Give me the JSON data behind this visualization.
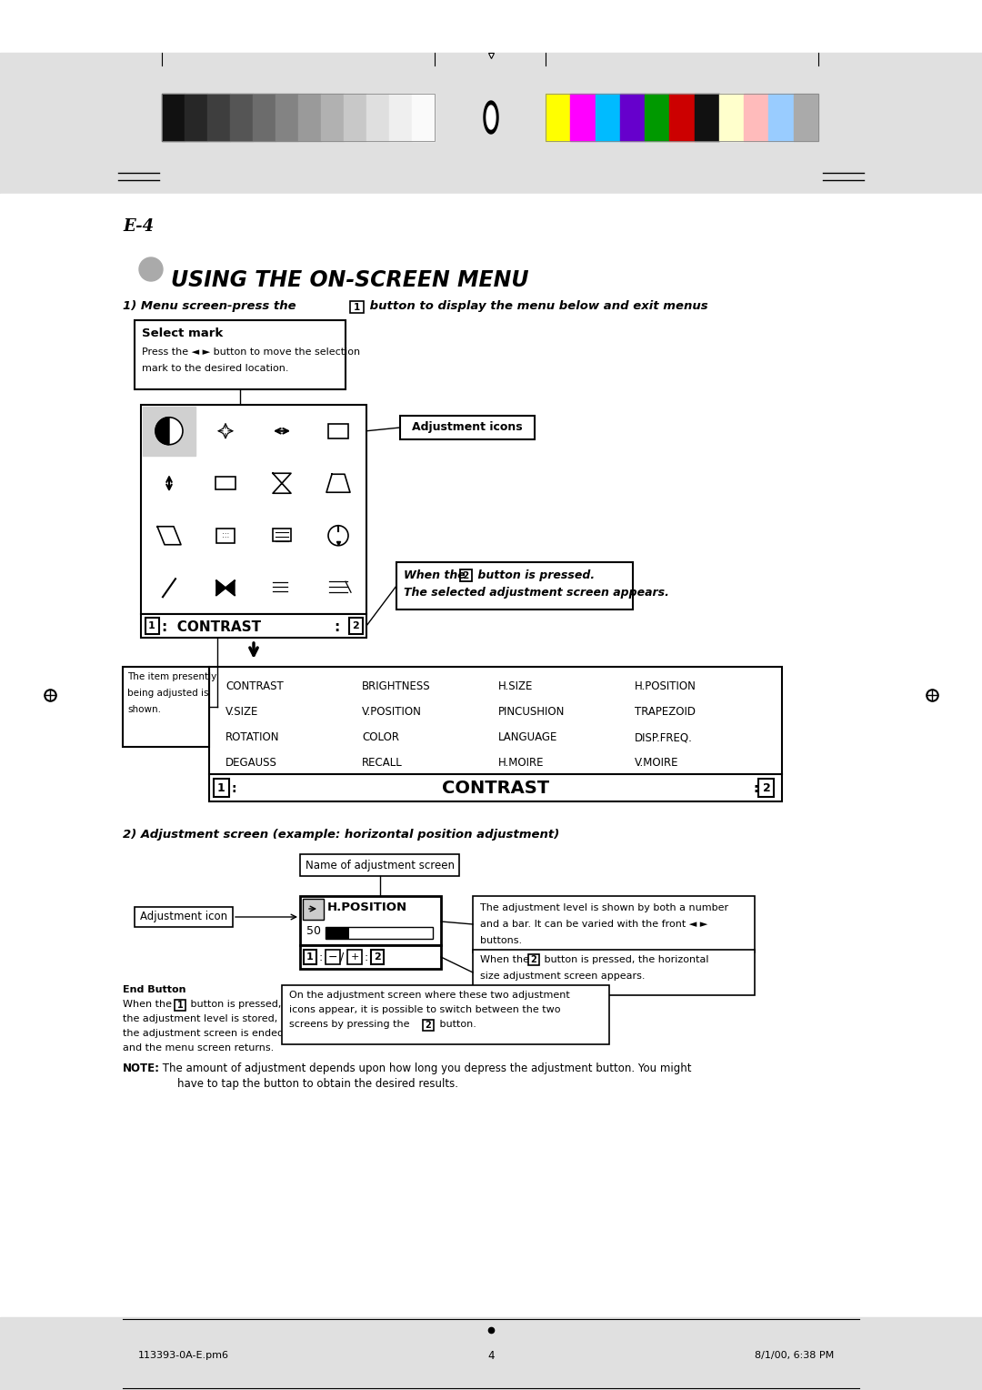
{
  "page_bg": "#ffffff",
  "header_bg": "#d8d8d8",
  "page_label": "E-4",
  "title": "USING THE ON-SCREEN MENU",
  "menu_items_col1": [
    "CONTRAST",
    "V.SIZE",
    "ROTATION",
    "DEGAUSS"
  ],
  "menu_items_col2": [
    "BRIGHTNESS",
    "V.POSITION",
    "COLOR",
    "RECALL"
  ],
  "menu_items_col3": [
    "H.SIZE",
    "PINCUSHION",
    "LANGUAGE",
    "H.MOIRE"
  ],
  "menu_items_col4": [
    "H.POSITION",
    "TRAPEZOID",
    "DISP.FREQ.",
    "V.MOIRE"
  ],
  "section2_label": "2) Adjustment screen (example: horizontal position adjustment)",
  "footer_left": "113393-0A-E.pm6",
  "footer_center": "4",
  "footer_right": "8/1/00, 6:38 PM",
  "grayscale_colors": [
    "#111111",
    "#272727",
    "#3e3e3e",
    "#555555",
    "#6c6c6c",
    "#838383",
    "#9a9a9a",
    "#b1b1b1",
    "#c8c8c8",
    "#dfdfdf",
    "#efefef",
    "#fafafa"
  ],
  "color_bars": [
    "#ffff00",
    "#ff00ff",
    "#00bbff",
    "#6600cc",
    "#009900",
    "#cc0000",
    "#111111",
    "#ffffcc",
    "#ffbbbb",
    "#99ccff",
    "#aaaaaa"
  ]
}
